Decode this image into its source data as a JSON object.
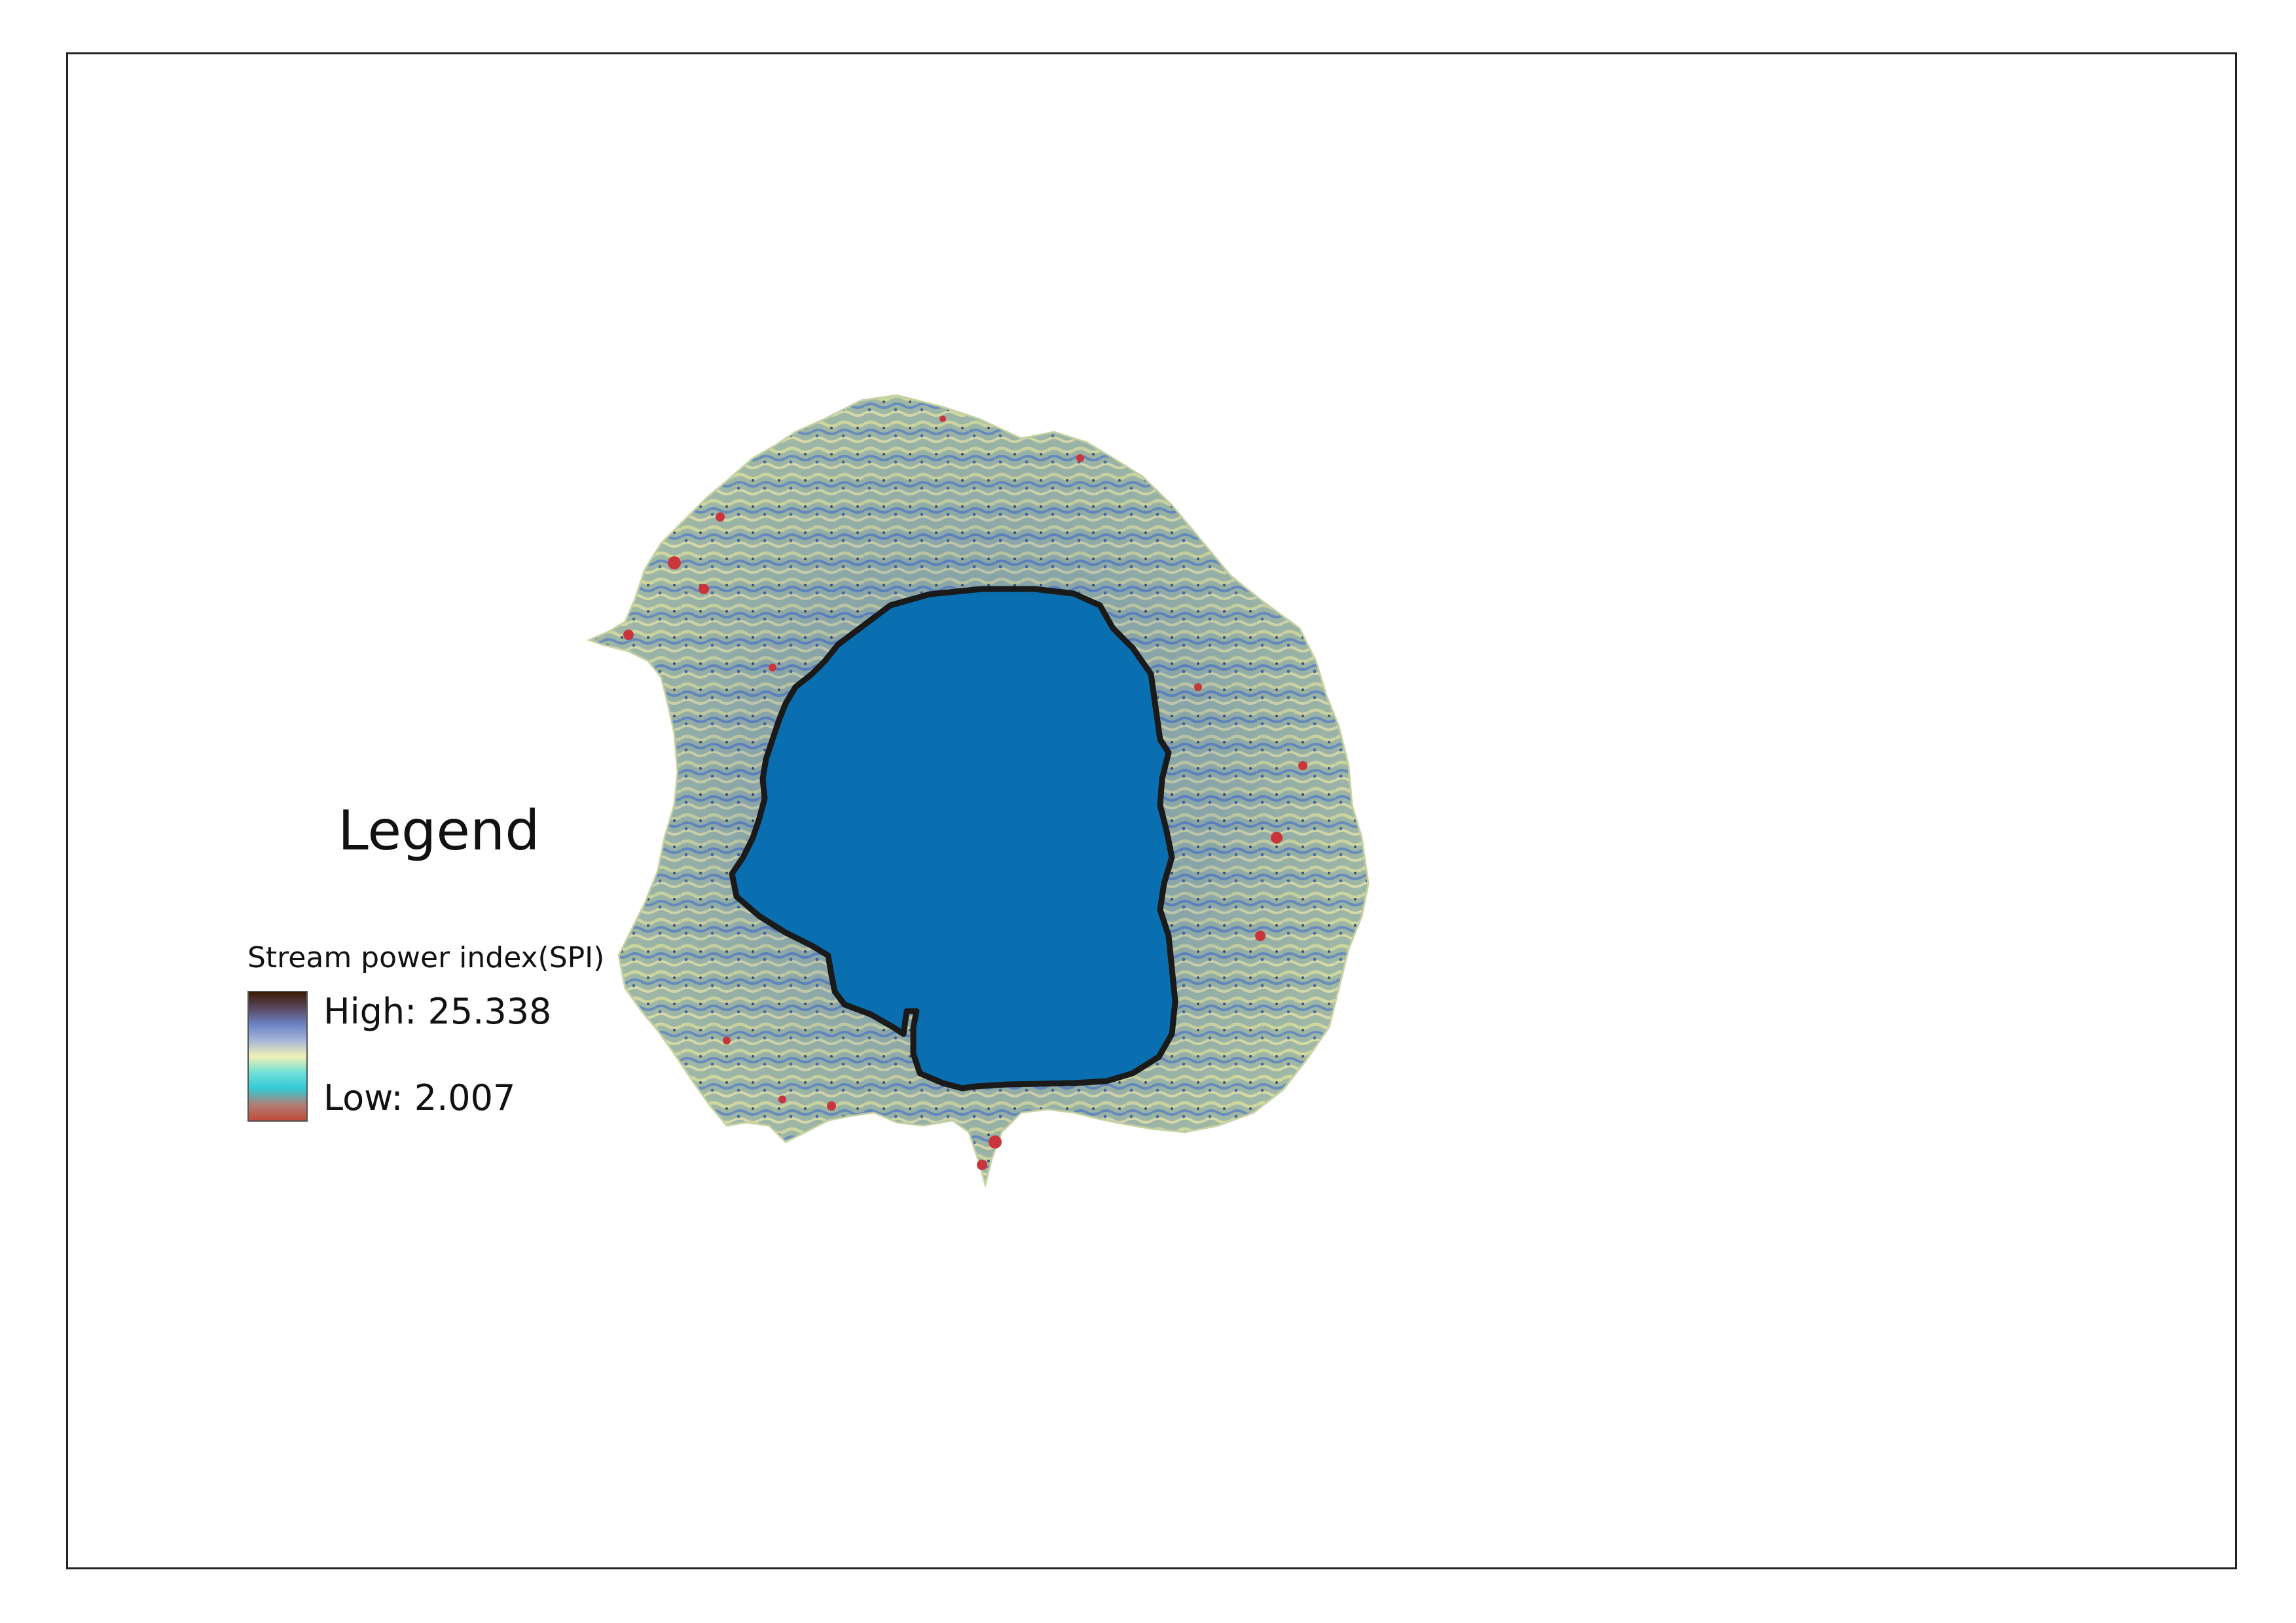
{
  "map": {
    "layer": "Stream power index(SPI)",
    "lake_color": "#0A6FB0",
    "lake_outline_color": "#1A1A1A",
    "terrain_palette": [
      "#8FA89A",
      "#A6C2A4",
      "#D6DE9C",
      "#6C8FC4",
      "#4B6FAE",
      "#C9353A"
    ]
  },
  "legend": {
    "title": "Legend",
    "subtitle": "Stream power index(SPI)",
    "high_label": "High: 25.338",
    "low_label": "Low: 2.007",
    "ramp_colors": [
      "#3B1A05",
      "#5B4A63",
      "#6A82C2",
      "#A8B8D8",
      "#F1F1B5",
      "#6FE0D8",
      "#33C9D6",
      "#B27D73",
      "#C14A3A"
    ]
  }
}
